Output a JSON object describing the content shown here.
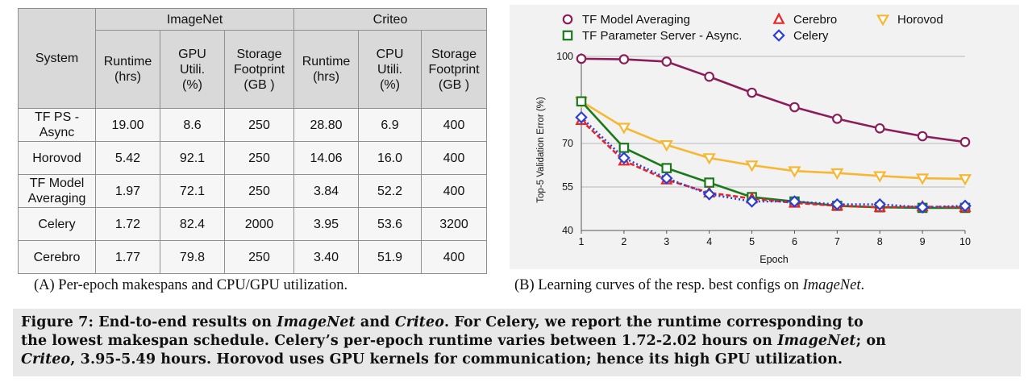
{
  "table": {
    "group_headers": [
      "ImageNet",
      "Criteo"
    ],
    "system_header": "System",
    "columns": [
      "Runtime\n(hrs)",
      "GPU\nUtili.\n(%)",
      "Storage\nFootprint\n(GB )",
      "Runtime\n(hrs)",
      "CPU\nUtili.\n(%)",
      "Storage\nFootprint\n(GB )"
    ],
    "rows": [
      {
        "system": "TF PS -\nAsync",
        "values": [
          "19.00",
          "8.6",
          "250",
          "28.80",
          "6.9",
          "400"
        ]
      },
      {
        "system": "Horovod",
        "values": [
          "5.42",
          "92.1",
          "250",
          "14.06",
          "16.0",
          "400"
        ]
      },
      {
        "system": "TF Model\nAveraging",
        "values": [
          "1.97",
          "72.1",
          "250",
          "3.84",
          "52.2",
          "400"
        ]
      },
      {
        "system": "Celery",
        "values": [
          "1.72",
          "82.4",
          "2000",
          "3.95",
          "53.6",
          "3200"
        ]
      },
      {
        "system": "Cerebro",
        "values": [
          "1.77",
          "79.8",
          "250",
          "3.40",
          "51.9",
          "400"
        ]
      }
    ]
  },
  "captions": {
    "a": "(A) Per-epoch makespans and CPU/GPU utilization.",
    "b_prefix": "(B) Learning curves of the resp. best configs on ",
    "b_italic": "ImageNet",
    "b_suffix": "."
  },
  "figure_caption": {
    "line1_a": "Figure 7: End-to-end results on ",
    "line1_b": "ImageNet",
    "line1_c": " and ",
    "line1_d": "Criteo",
    "line1_e": ". For Celery, we report the runtime corresponding to",
    "line2_a": "the lowest makespan schedule. Celery’s per-epoch runtime varies between 1.72-2.02 hours on ",
    "line2_b": "ImageNet",
    "line2_c": "; on",
    "line3_a": "Criteo",
    "line3_b": ", 3.95-5.49 hours. Horovod uses GPU kernels for communication; hence its high GPU utilization."
  },
  "chart_data": {
    "type": "line",
    "title": "",
    "xlabel": "Epoch",
    "ylabel": "Top-5 Validation Error (%)",
    "x": [
      1,
      2,
      3,
      4,
      5,
      6,
      7,
      8,
      9,
      10
    ],
    "ylim": [
      40,
      100
    ],
    "yticks": [
      40,
      55,
      70,
      100
    ],
    "xticks": [
      1,
      2,
      3,
      4,
      5,
      6,
      7,
      8,
      9,
      10
    ],
    "grid": "horizontal",
    "legend_placement": "top",
    "series": [
      {
        "name": "TF Model Averaging",
        "color": "#8b1e5a",
        "marker": "circle",
        "dash": "solid",
        "values": [
          99.2,
          99.0,
          98.2,
          93.0,
          87.5,
          82.5,
          78.5,
          75.2,
          72.5,
          70.5
        ]
      },
      {
        "name": "Horovod",
        "color": "#f7b733",
        "marker": "triangle-down",
        "dash": "solid",
        "values": [
          84.5,
          75.5,
          69.5,
          65.0,
          62.5,
          60.5,
          59.8,
          58.8,
          58.0,
          57.8
        ]
      },
      {
        "name": "TF Parameter Server - Async.",
        "color": "#1a7a1a",
        "marker": "square",
        "dash": "solid",
        "values": [
          84.5,
          68.5,
          61.5,
          56.5,
          51.5,
          50.0,
          48.5,
          48.0,
          47.8,
          47.8
        ]
      },
      {
        "name": "Cerebro",
        "color": "#e82424",
        "marker": "triangle-up",
        "dash": "dashed",
        "values": [
          78.0,
          64.0,
          57.5,
          53.0,
          51.0,
          49.5,
          48.5,
          48.0,
          48.2,
          48.0
        ]
      },
      {
        "name": "Celery",
        "color": "#2b3fd6",
        "marker": "diamond",
        "dash": "dotted",
        "values": [
          79.0,
          65.0,
          58.0,
          52.5,
          50.0,
          50.0,
          49.0,
          49.0,
          48.0,
          48.5
        ]
      }
    ]
  }
}
